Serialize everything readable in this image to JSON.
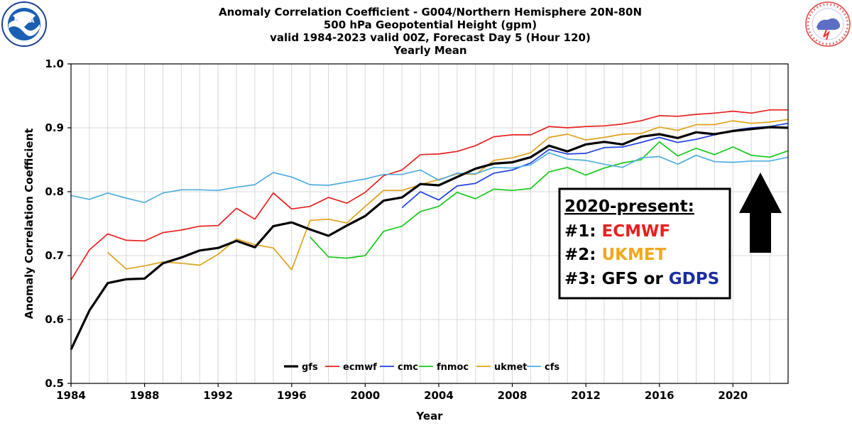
{
  "logos": {
    "left": {
      "text": "NOAA",
      "icon": "noaa-logo-icon"
    },
    "right": {
      "icon": "nws-logo-icon"
    }
  },
  "chart_data": {
    "type": "line",
    "title": [
      "Anomaly Correlation Coefficient - G004/Northern Hemisphere 20N-80N",
      "500 hPa Geopotential Height (gpm)",
      "valid 1984-2023 valid 00Z, Forecast Day 5 (Hour 120)",
      "Yearly Mean"
    ],
    "xlabel": "Year",
    "ylabel": "Anomaly Correlation Coefficient",
    "xlim": [
      1984,
      2023
    ],
    "ylim": [
      0.5,
      1.0
    ],
    "xticks": [
      1984,
      1988,
      1992,
      1996,
      2000,
      2004,
      2008,
      2012,
      2016,
      2020
    ],
    "yticks": [
      0.5,
      0.6,
      0.7,
      0.8,
      0.9,
      1.0
    ],
    "ytick_labels": [
      "0.5",
      "0.6",
      "0.7",
      "0.8",
      "0.9",
      "1.0"
    ],
    "grid": true,
    "legend_position": "bottom-center",
    "series": [
      {
        "name": "gfs",
        "color": "#000000",
        "bold": true,
        "start": 1984,
        "values": [
          0.553,
          0.614,
          0.657,
          0.663,
          0.664,
          0.688,
          0.697,
          0.708,
          0.712,
          0.723,
          0.713,
          0.746,
          0.752,
          0.741,
          0.731,
          0.747,
          0.762,
          0.786,
          0.791,
          0.812,
          0.81,
          0.823,
          0.836,
          0.844,
          0.846,
          0.854,
          0.872,
          0.863,
          0.874,
          0.878,
          0.874,
          0.886,
          0.89,
          0.884,
          0.893,
          0.89,
          0.895,
          0.898,
          0.901,
          0.9
        ]
      },
      {
        "name": "ecmwf",
        "color": "#e8201e",
        "start": 1984,
        "values": [
          0.662,
          0.709,
          0.734,
          0.724,
          0.723,
          0.736,
          0.74,
          0.746,
          0.747,
          0.774,
          0.757,
          0.798,
          0.773,
          0.777,
          0.791,
          0.782,
          0.799,
          0.825,
          0.834,
          0.858,
          0.859,
          0.863,
          0.872,
          0.886,
          0.889,
          0.889,
          0.902,
          0.9,
          0.902,
          0.903,
          0.906,
          0.911,
          0.919,
          0.918,
          0.921,
          0.923,
          0.926,
          0.923,
          0.928,
          0.928
        ]
      },
      {
        "name": "cmc",
        "color": "#1f3fe0",
        "start": 2002,
        "values": [
          0.775,
          0.8,
          0.787,
          0.809,
          0.813,
          0.829,
          0.834,
          0.845,
          0.866,
          0.859,
          0.86,
          0.869,
          0.87,
          0.877,
          0.885,
          0.877,
          0.882,
          0.889,
          0.896,
          0.9,
          0.902,
          0.907
        ]
      },
      {
        "name": "fnmoc",
        "color": "#18c81b",
        "start": 1997,
        "values": [
          0.729,
          0.698,
          0.696,
          0.7,
          0.738,
          0.746,
          0.769,
          0.777,
          0.799,
          0.789,
          0.804,
          0.802,
          0.805,
          0.831,
          0.838,
          0.826,
          0.837,
          0.845,
          0.85,
          0.878,
          0.856,
          0.868,
          0.858,
          0.87,
          0.857,
          0.854,
          0.864
        ]
      },
      {
        "name": "ukmet",
        "color": "#e0a21a",
        "start": 1986,
        "values": [
          0.705,
          0.679,
          0.684,
          0.69,
          0.688,
          0.685,
          0.702,
          0.726,
          0.717,
          0.712,
          0.678,
          0.755,
          0.757,
          0.751,
          0.777,
          0.802,
          0.802,
          0.811,
          0.819,
          0.828,
          0.827,
          0.849,
          0.853,
          0.861,
          0.885,
          0.89,
          0.881,
          0.885,
          0.89,
          0.891,
          0.901,
          0.896,
          0.905,
          0.905,
          0.911,
          0.907,
          0.909,
          0.913
        ]
      },
      {
        "name": "cfs",
        "color": "#4faee0",
        "start": 1984,
        "values": [
          0.794,
          0.788,
          0.798,
          0.79,
          0.783,
          0.798,
          0.803,
          0.803,
          0.802,
          0.807,
          0.811,
          0.83,
          0.823,
          0.811,
          0.81,
          0.815,
          0.82,
          0.827,
          0.827,
          0.834,
          0.818,
          0.829,
          0.828,
          0.838,
          0.837,
          0.842,
          0.861,
          0.851,
          0.849,
          0.843,
          0.838,
          0.853,
          0.855,
          0.843,
          0.857,
          0.847,
          0.846,
          0.848,
          0.848,
          0.854
        ]
      }
    ],
    "annotation": {
      "heading": "2020-present:",
      "lines": [
        {
          "prefix": "#1: ",
          "name": "ECMWF",
          "color": "#e8201e"
        },
        {
          "prefix": "#2: ",
          "name": "UKMET",
          "color": "#f0a818"
        },
        {
          "prefix": "#3: GFS or ",
          "name": "GDPS",
          "color": "#1a2e9e"
        }
      ],
      "arrow_icon": "up-arrow-icon"
    }
  }
}
